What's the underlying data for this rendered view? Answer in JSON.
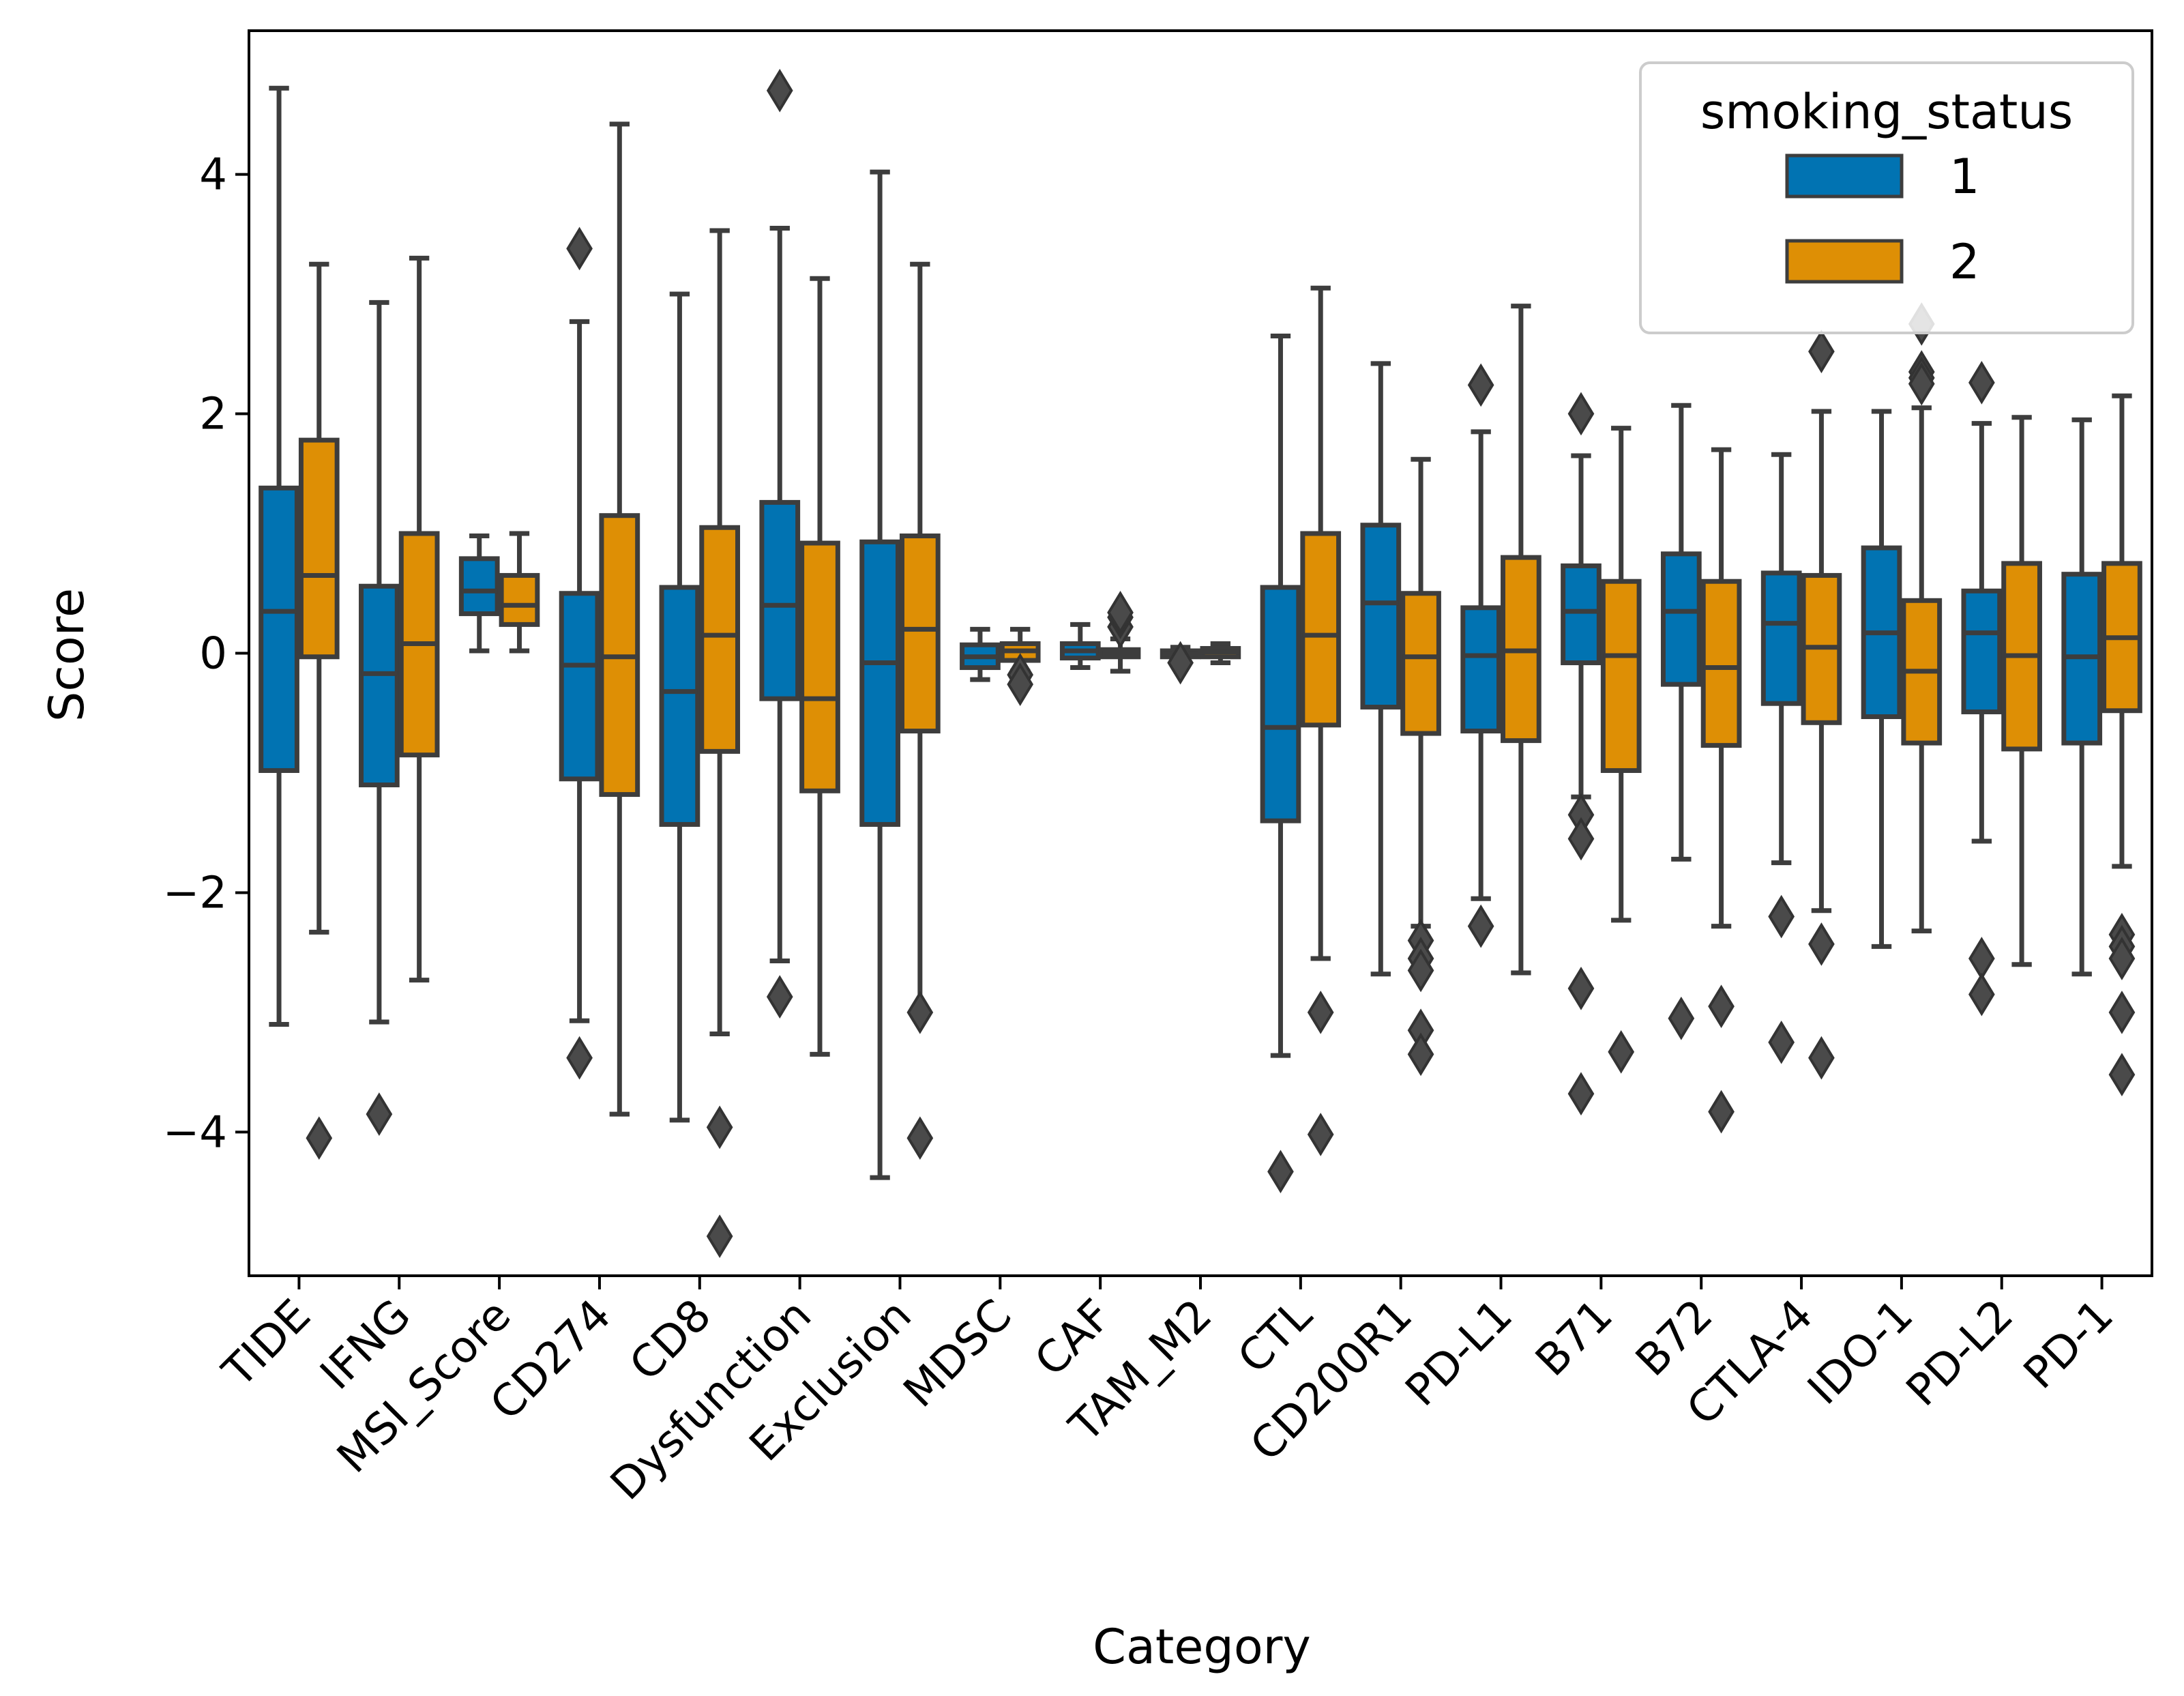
{
  "chart_data": {
    "type": "box",
    "xlabel": "Category",
    "ylabel": "Score",
    "ylim": [
      -5.2,
      5.2
    ],
    "yticks": [
      -4,
      -2,
      0,
      2,
      4
    ],
    "ytick_labels": [
      "−4",
      "−2",
      "0",
      "2",
      "4"
    ],
    "legend": {
      "title": "smoking_status",
      "placement": "top-right",
      "entries": [
        {
          "label": "1",
          "color": "#0173b2"
        },
        {
          "label": "2",
          "color": "#de8f05"
        }
      ]
    },
    "categories": [
      "TIDE",
      "IFNG",
      "MSI_Score",
      "CD274",
      "CD8",
      "Dysfunction",
      "Exclusion",
      "MDSC",
      "CAF",
      "TAM_M2",
      "CTL",
      "CD200R1",
      "PD-L1",
      "B71",
      "B72",
      "CTLA-4",
      "IDO-1",
      "PD-L2",
      "PD-1"
    ],
    "series": [
      {
        "name": "1",
        "color": "#0173b2",
        "boxes": [
          {
            "whislo": -3.1,
            "q1": -0.98,
            "med": 0.35,
            "q3": 1.38,
            "whishi": 4.72,
            "fliers": []
          },
          {
            "whislo": -3.08,
            "q1": -1.1,
            "med": -0.17,
            "q3": 0.56,
            "whishi": 2.93,
            "fliers": [
              -3.85
            ]
          },
          {
            "whislo": 0.02,
            "q1": 0.33,
            "med": 0.52,
            "q3": 0.79,
            "whishi": 0.98,
            "fliers": []
          },
          {
            "whislo": -3.07,
            "q1": -1.05,
            "med": -0.1,
            "q3": 0.5,
            "whishi": 2.77,
            "fliers": [
              3.38,
              -3.38
            ]
          },
          {
            "whislo": -3.9,
            "q1": -1.43,
            "med": -0.32,
            "q3": 0.55,
            "whishi": 3.0,
            "fliers": []
          },
          {
            "whislo": -2.57,
            "q1": -0.38,
            "med": 0.4,
            "q3": 1.26,
            "whishi": 3.55,
            "fliers": [
              4.7,
              -2.87
            ]
          },
          {
            "whislo": -4.38,
            "q1": -1.43,
            "med": -0.08,
            "q3": 0.93,
            "whishi": 4.02,
            "fliers": []
          },
          {
            "whislo": -0.22,
            "q1": -0.12,
            "med": -0.03,
            "q3": 0.07,
            "whishi": 0.2,
            "fliers": []
          },
          {
            "whislo": -0.12,
            "q1": -0.04,
            "med": 0.02,
            "q3": 0.08,
            "whishi": 0.24,
            "fliers": []
          },
          {
            "whislo": -0.07,
            "q1": -0.03,
            "med": -0.01,
            "q3": 0.02,
            "whishi": 0.05,
            "fliers": [
              -0.08
            ]
          },
          {
            "whislo": -3.36,
            "q1": -1.4,
            "med": -0.62,
            "q3": 0.55,
            "whishi": 2.65,
            "fliers": [
              -4.33
            ]
          },
          {
            "whislo": -2.68,
            "q1": -0.45,
            "med": 0.42,
            "q3": 1.07,
            "whishi": 2.42,
            "fliers": []
          },
          {
            "whislo": -2.05,
            "q1": -0.65,
            "med": -0.02,
            "q3": 0.38,
            "whishi": 1.85,
            "fliers": [
              2.24,
              -2.28
            ]
          },
          {
            "whislo": -1.2,
            "q1": -0.08,
            "med": 0.35,
            "q3": 0.73,
            "whishi": 1.65,
            "fliers": [
              2.0,
              -1.35,
              -1.55,
              -2.8,
              -3.68
            ]
          },
          {
            "whislo": -1.72,
            "q1": -0.26,
            "med": 0.35,
            "q3": 0.83,
            "whishi": 2.07,
            "fliers": [
              -3.05
            ]
          },
          {
            "whislo": -1.75,
            "q1": -0.42,
            "med": 0.25,
            "q3": 0.67,
            "whishi": 1.66,
            "fliers": [
              -2.2,
              -3.25
            ]
          },
          {
            "whislo": -2.45,
            "q1": -0.53,
            "med": 0.17,
            "q3": 0.88,
            "whishi": 2.02,
            "fliers": []
          },
          {
            "whislo": -1.57,
            "q1": -0.49,
            "med": 0.17,
            "q3": 0.52,
            "whishi": 1.92,
            "fliers": [
              2.26,
              -2.55,
              -2.85
            ]
          },
          {
            "whislo": -2.68,
            "q1": -0.75,
            "med": -0.03,
            "q3": 0.66,
            "whishi": 1.95,
            "fliers": []
          }
        ]
      },
      {
        "name": "2",
        "color": "#de8f05",
        "boxes": [
          {
            "whislo": -2.33,
            "q1": -0.03,
            "med": 0.65,
            "q3": 1.78,
            "whishi": 3.25,
            "fliers": [
              -4.05
            ]
          },
          {
            "whislo": -2.73,
            "q1": -0.85,
            "med": 0.08,
            "q3": 1.0,
            "whishi": 3.3,
            "fliers": []
          },
          {
            "whislo": 0.02,
            "q1": 0.24,
            "med": 0.4,
            "q3": 0.65,
            "whishi": 1.0,
            "fliers": []
          },
          {
            "whislo": -3.85,
            "q1": -1.18,
            "med": -0.03,
            "q3": 1.15,
            "whishi": 4.42,
            "fliers": []
          },
          {
            "whislo": -3.18,
            "q1": -0.82,
            "med": 0.15,
            "q3": 1.05,
            "whishi": 3.53,
            "fliers": [
              -3.96,
              -4.87
            ]
          },
          {
            "whislo": -3.35,
            "q1": -1.15,
            "med": -0.38,
            "q3": 0.92,
            "whishi": 3.13,
            "fliers": []
          },
          {
            "whislo": -3.0,
            "q1": -0.65,
            "med": 0.2,
            "q3": 0.98,
            "whishi": 3.25,
            "fliers": [
              -3.0,
              -4.05
            ]
          },
          {
            "whislo": -0.15,
            "q1": -0.06,
            "med": 0.02,
            "q3": 0.08,
            "whishi": 0.2,
            "fliers": [
              -0.18,
              -0.26
            ]
          },
          {
            "whislo": -0.15,
            "q1": -0.03,
            "med": 0.0,
            "q3": 0.03,
            "whishi": 0.12,
            "fliers": [
              0.22,
              0.3,
              0.34
            ]
          },
          {
            "whislo": -0.08,
            "q1": -0.03,
            "med": 0.01,
            "q3": 0.04,
            "whishi": 0.08,
            "fliers": []
          },
          {
            "whislo": -2.55,
            "q1": -0.6,
            "med": 0.15,
            "q3": 1.0,
            "whishi": 3.05,
            "fliers": [
              -3.0,
              -4.02
            ]
          },
          {
            "whislo": -2.28,
            "q1": -0.67,
            "med": -0.03,
            "q3": 0.5,
            "whishi": 1.62,
            "fliers": [
              -2.4,
              -2.55,
              -2.65,
              -3.15,
              -3.35
            ]
          },
          {
            "whislo": -2.67,
            "q1": -0.73,
            "med": 0.02,
            "q3": 0.8,
            "whishi": 2.9,
            "fliers": []
          },
          {
            "whislo": -2.23,
            "q1": -0.98,
            "med": -0.02,
            "q3": 0.6,
            "whishi": 1.88,
            "fliers": [
              -3.33
            ]
          },
          {
            "whislo": -2.28,
            "q1": -0.77,
            "med": -0.12,
            "q3": 0.6,
            "whishi": 1.7,
            "fliers": [
              -2.95,
              -3.83
            ]
          },
          {
            "whislo": -2.15,
            "q1": -0.58,
            "med": 0.05,
            "q3": 0.65,
            "whishi": 2.02,
            "fliers": [
              2.52,
              -2.43,
              -3.38
            ]
          },
          {
            "whislo": -2.32,
            "q1": -0.75,
            "med": -0.15,
            "q3": 0.44,
            "whishi": 2.05,
            "fliers": [
              2.75,
              2.35,
              2.3,
              2.25
            ]
          },
          {
            "whislo": -2.6,
            "q1": -0.8,
            "med": -0.02,
            "q3": 0.75,
            "whishi": 1.97,
            "fliers": []
          },
          {
            "whislo": -1.78,
            "q1": -0.48,
            "med": 0.13,
            "q3": 0.75,
            "whishi": 2.15,
            "fliers": [
              -2.35,
              -2.45,
              -2.55,
              -3.0,
              -3.52
            ]
          }
        ]
      }
    ]
  }
}
